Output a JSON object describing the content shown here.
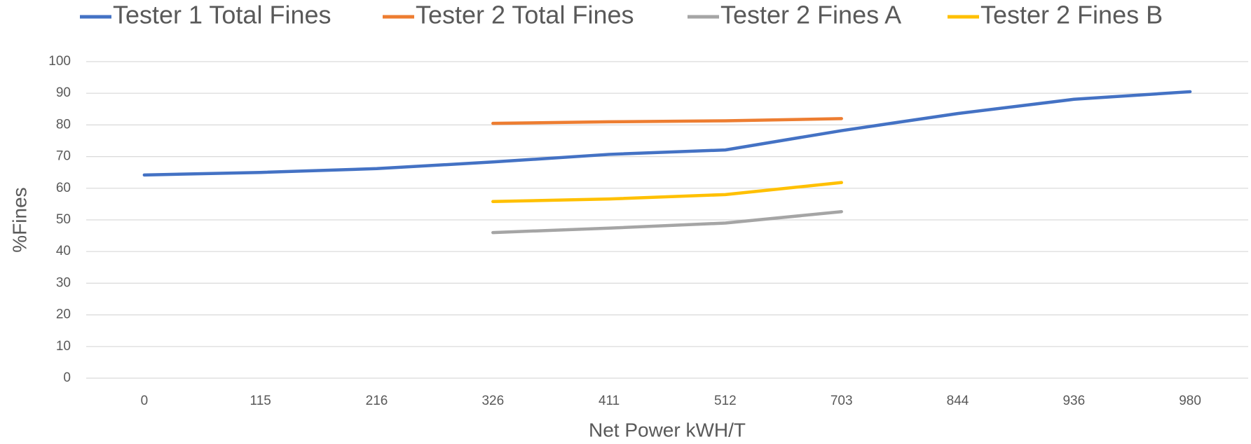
{
  "chart_data": {
    "type": "line",
    "x_label": "Net Power kWH/T",
    "y_label": "%Fines",
    "categories": [
      "0",
      "115",
      "216",
      "326",
      "411",
      "512",
      "703",
      "844",
      "936",
      "980"
    ],
    "series": [
      {
        "name": "Tester 1 Total Fines",
        "color": "#4472c4",
        "values": [
          64.2,
          65,
          66.2,
          68.3,
          70.7,
          72.1,
          78.2,
          83.6,
          88.1,
          90.5
        ]
      },
      {
        "name": "Tester 2 Total Fines",
        "color": "#ed7d31",
        "values": [
          null,
          null,
          null,
          80.5,
          81,
          81.3,
          82,
          null,
          null,
          null
        ]
      },
      {
        "name": "Tester 2 Fines A",
        "color": "#a5a5a5",
        "values": [
          null,
          null,
          null,
          46,
          47.4,
          49,
          52.6,
          null,
          null,
          null
        ]
      },
      {
        "name": "Tester 2 Fines B",
        "color": "#ffc000",
        "values": [
          null,
          null,
          null,
          55.8,
          56.6,
          58,
          61.8,
          null,
          null,
          null
        ]
      }
    ],
    "ylim": [
      0,
      100
    ],
    "yticks": [
      0,
      10,
      20,
      30,
      40,
      50,
      60,
      70,
      80,
      90,
      100
    ],
    "grid": true,
    "legend": "top"
  }
}
